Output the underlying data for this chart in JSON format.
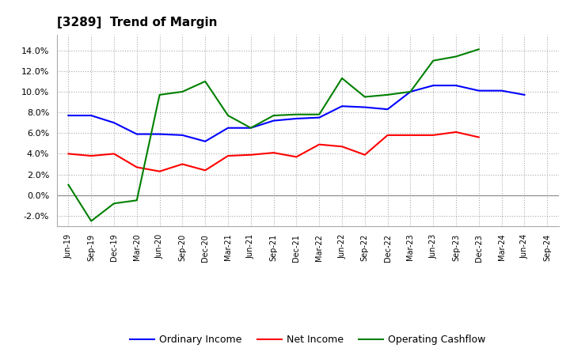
{
  "title": "[3289]  Trend of Margin",
  "x_labels": [
    "Jun-19",
    "Sep-19",
    "Dec-19",
    "Mar-20",
    "Jun-20",
    "Sep-20",
    "Dec-20",
    "Mar-21",
    "Jun-21",
    "Sep-21",
    "Dec-21",
    "Mar-22",
    "Jun-22",
    "Sep-22",
    "Dec-22",
    "Mar-23",
    "Jun-23",
    "Sep-23",
    "Dec-23",
    "Mar-24",
    "Jun-24",
    "Sep-24"
  ],
  "ordinary_income": [
    0.077,
    0.077,
    0.07,
    0.059,
    0.059,
    0.058,
    0.052,
    0.065,
    0.065,
    0.072,
    0.074,
    0.075,
    0.086,
    0.085,
    0.083,
    0.1,
    0.106,
    0.106,
    0.101,
    0.101,
    0.097,
    null
  ],
  "net_income": [
    0.04,
    0.038,
    0.04,
    0.027,
    0.023,
    0.03,
    0.024,
    0.038,
    0.039,
    0.041,
    0.037,
    0.049,
    0.047,
    0.039,
    0.058,
    0.058,
    0.058,
    0.061,
    0.056,
    null,
    null,
    null
  ],
  "operating_cashflow": [
    0.01,
    -0.025,
    -0.008,
    -0.005,
    0.097,
    0.1,
    0.11,
    0.077,
    0.065,
    0.077,
    0.078,
    0.078,
    0.113,
    0.095,
    0.097,
    0.1,
    0.13,
    0.134,
    0.141,
    null,
    null,
    null
  ],
  "ylim": [
    -0.03,
    0.155
  ],
  "yticks": [
    -0.02,
    0.0,
    0.02,
    0.04,
    0.06,
    0.08,
    0.1,
    0.12,
    0.14
  ],
  "color_ordinary": "#0000FF",
  "color_net": "#FF0000",
  "color_cashflow": "#008000",
  "legend_labels": [
    "Ordinary Income",
    "Net Income",
    "Operating Cashflow"
  ],
  "bg_color": "#FFFFFF",
  "plot_bg_color": "#FFFFFF"
}
